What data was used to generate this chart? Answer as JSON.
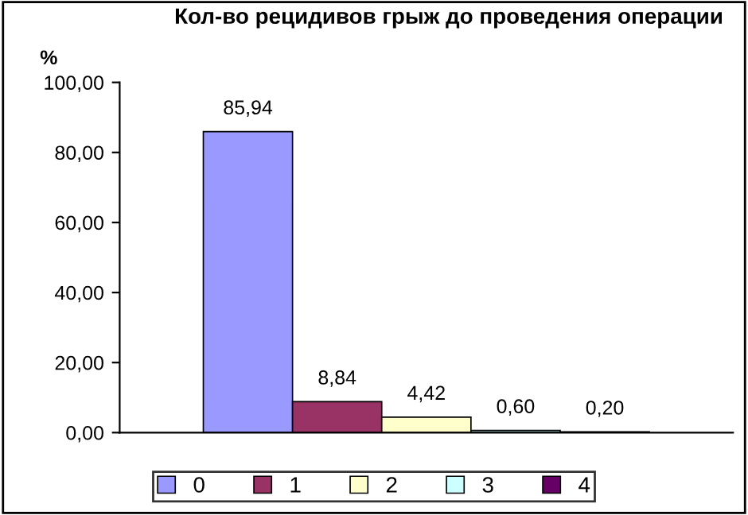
{
  "chart_data": {
    "type": "bar",
    "title": "Кол-во рецидивов грыж до проведения операции",
    "ylabel": "%",
    "categories": [
      null
    ],
    "series": [
      {
        "name": "0",
        "color": "#9999ff",
        "values": [
          85.94
        ],
        "value_labels": [
          "85,94"
        ]
      },
      {
        "name": "1",
        "color": "#993366",
        "values": [
          8.84
        ],
        "value_labels": [
          "8,84"
        ]
      },
      {
        "name": "2",
        "color": "#ffffcc",
        "values": [
          4.42
        ],
        "value_labels": [
          "4,42"
        ]
      },
      {
        "name": "3",
        "color": "#ccffff",
        "values": [
          0.6
        ],
        "value_labels": [
          "0,60"
        ]
      },
      {
        "name": "4",
        "color": "#660066",
        "values": [
          0.2
        ],
        "value_labels": [
          "0,20"
        ]
      }
    ],
    "ylim": [
      0,
      100
    ],
    "yticks": [
      {
        "value": 0,
        "label": "0,00"
      },
      {
        "value": 20,
        "label": "20,00"
      },
      {
        "value": 40,
        "label": "40,00"
      },
      {
        "value": 60,
        "label": "60,00"
      },
      {
        "value": 80,
        "label": "80,00"
      },
      {
        "value": 100,
        "label": "100,00"
      }
    ],
    "grid": false,
    "legend": "bottom"
  }
}
